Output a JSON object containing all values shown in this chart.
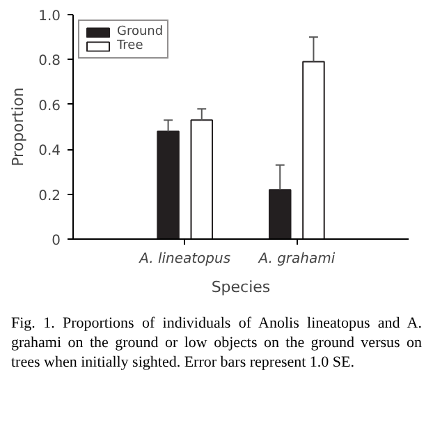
{
  "chart_data": {
    "type": "bar",
    "xlabel": "Species",
    "ylabel": "Proportion",
    "categories": [
      "A. lineatopus",
      "A. grahami"
    ],
    "series": [
      {
        "name": "Ground",
        "color": "#231f20",
        "values": [
          0.48,
          0.22
        ],
        "errors": [
          [
            0.48,
            0.53
          ],
          [
            0.22,
            0.33
          ]
        ]
      },
      {
        "name": "Tree",
        "color": "#ffffff",
        "values": [
          0.53,
          0.79
        ],
        "errors": [
          [
            0.53,
            0.58
          ],
          [
            0.79,
            0.9
          ]
        ]
      }
    ],
    "ylim": [
      0,
      1.0
    ],
    "yticks": [
      0,
      0.2,
      0.4,
      0.6,
      0.8,
      {
        "value": 1,
        "label": "1.0"
      }
    ],
    "grid": false,
    "legend": "top left",
    "annotations": [
      "Fig. 1. Proportions of individuals of Anolis lineatopus and A. grahami on the ground or low objects on the ground versus on trees when initially sighted. Error bars represent 1.0 SE."
    ]
  }
}
